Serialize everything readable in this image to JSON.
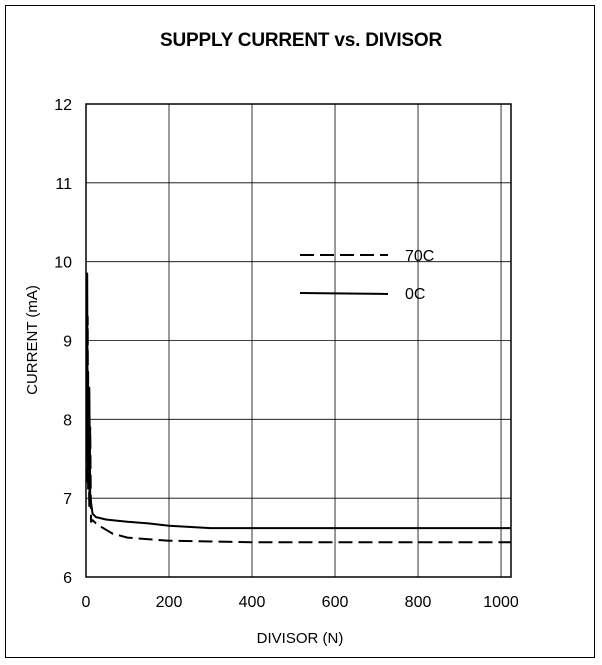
{
  "chart_data": {
    "type": "line",
    "title": "SUPPLY CURRENT vs. DIVISOR",
    "xlabel": "DIVISOR (N)",
    "ylabel": "CURRENT (mA)",
    "xlim": [
      0,
      1024
    ],
    "ylim": [
      6,
      12
    ],
    "xticks": [
      0,
      200,
      400,
      600,
      800,
      1000
    ],
    "yticks": [
      6,
      7,
      8,
      9,
      10,
      11,
      12
    ],
    "grid": true,
    "legend_position": "center-right",
    "series": [
      {
        "name": "70C",
        "style": "dashed",
        "color": "#000000",
        "x": [
          2,
          3,
          4,
          5,
          6,
          8,
          10,
          12,
          16,
          24,
          32,
          48,
          64,
          100,
          150,
          200,
          300,
          400,
          600,
          800,
          1024
        ],
        "y": [
          7.2,
          7.3,
          9.3,
          7.1,
          7.6,
          6.9,
          7.9,
          6.7,
          6.72,
          6.68,
          6.65,
          6.6,
          6.55,
          6.5,
          6.48,
          6.46,
          6.45,
          6.44,
          6.44,
          6.44,
          6.44
        ]
      },
      {
        "name": "0C",
        "style": "solid",
        "color": "#000000",
        "x": [
          2,
          3,
          4,
          5,
          6,
          8,
          10,
          12,
          16,
          24,
          32,
          48,
          64,
          100,
          150,
          200,
          300,
          400,
          600,
          800,
          1024
        ],
        "y": [
          7.5,
          9.85,
          7.3,
          8.6,
          7.2,
          8.4,
          7.0,
          6.95,
          6.8,
          6.76,
          6.75,
          6.73,
          6.72,
          6.7,
          6.68,
          6.65,
          6.62,
          6.62,
          6.62,
          6.62,
          6.62
        ]
      }
    ]
  }
}
